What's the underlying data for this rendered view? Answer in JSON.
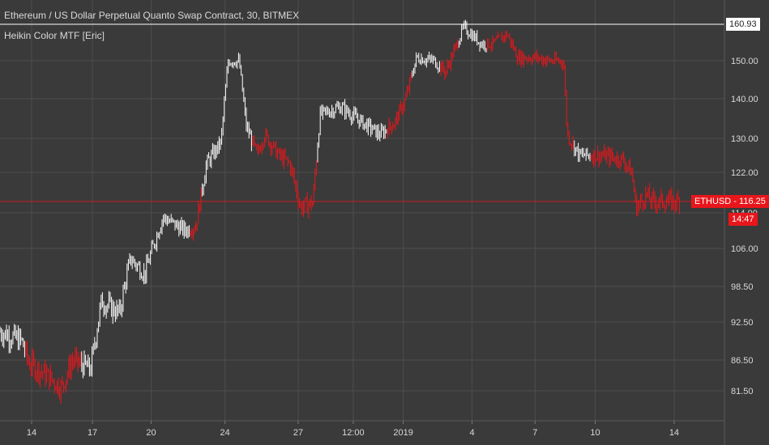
{
  "header": {
    "title": "Ethereum / US Dollar Perpetual Quanto Swap Contract, 30, BITMEX",
    "indicator": "Heikin Color MTF [Eric]"
  },
  "price_tags": {
    "high_value": "160.93",
    "symbol": "ETHUSD",
    "current_value": "116.25",
    "countdown": "14:47"
  },
  "colors": {
    "background": "#3a3a3a",
    "grid": "#4d4d4d",
    "up_candle": "#ffffff",
    "down_candle": "#e8161b",
    "axis_text": "#d9d9d9"
  },
  "chart_data": {
    "type": "candlestick",
    "y_ticks": [
      "81.50",
      "86.50",
      "92.50",
      "98.50",
      "106.00",
      "114.00",
      "122.00",
      "130.00",
      "140.00",
      "150.00"
    ],
    "x_ticks": [
      "14",
      "17",
      "20",
      "24",
      "27",
      "12:00",
      "2019",
      "4",
      "7",
      "10",
      "14"
    ],
    "x_tick_positions": [
      0.038,
      0.122,
      0.203,
      0.305,
      0.406,
      0.482,
      0.551,
      0.646,
      0.733,
      0.816,
      0.925
    ],
    "grid": true,
    "series": [
      {
        "name": "ETHUSD",
        "approx_close_path": [
          {
            "t": 0.0,
            "v": 91.0,
            "dir": "up"
          },
          {
            "t": 0.03,
            "v": 89.5,
            "dir": "up"
          },
          {
            "t": 0.04,
            "v": 86.0,
            "dir": "down"
          },
          {
            "t": 0.065,
            "v": 84.0,
            "dir": "down"
          },
          {
            "t": 0.085,
            "v": 82.0,
            "dir": "down"
          },
          {
            "t": 0.1,
            "v": 86.5,
            "dir": "down"
          },
          {
            "t": 0.125,
            "v": 85.0,
            "dir": "up"
          },
          {
            "t": 0.14,
            "v": 96.0,
            "dir": "up"
          },
          {
            "t": 0.165,
            "v": 94.0,
            "dir": "up"
          },
          {
            "t": 0.18,
            "v": 104.0,
            "dir": "up"
          },
          {
            "t": 0.2,
            "v": 101.0,
            "dir": "up"
          },
          {
            "t": 0.225,
            "v": 113.0,
            "dir": "up"
          },
          {
            "t": 0.255,
            "v": 110.0,
            "dir": "up"
          },
          {
            "t": 0.27,
            "v": 111.0,
            "dir": "down"
          },
          {
            "t": 0.285,
            "v": 124.0,
            "dir": "up"
          },
          {
            "t": 0.305,
            "v": 129.0,
            "dir": "up"
          },
          {
            "t": 0.315,
            "v": 150.0,
            "dir": "up"
          },
          {
            "t": 0.33,
            "v": 150.0,
            "dir": "up"
          },
          {
            "t": 0.34,
            "v": 133.0,
            "dir": "up"
          },
          {
            "t": 0.355,
            "v": 126.0,
            "dir": "down"
          },
          {
            "t": 0.365,
            "v": 131.0,
            "dir": "down"
          },
          {
            "t": 0.385,
            "v": 126.0,
            "dir": "down"
          },
          {
            "t": 0.4,
            "v": 124.0,
            "dir": "down"
          },
          {
            "t": 0.415,
            "v": 115.0,
            "dir": "down"
          },
          {
            "t": 0.432,
            "v": 116.0,
            "dir": "down"
          },
          {
            "t": 0.442,
            "v": 136.0,
            "dir": "up"
          },
          {
            "t": 0.47,
            "v": 138.0,
            "dir": "up"
          },
          {
            "t": 0.5,
            "v": 134.0,
            "dir": "up"
          },
          {
            "t": 0.525,
            "v": 131.0,
            "dir": "up"
          },
          {
            "t": 0.545,
            "v": 134.0,
            "dir": "down"
          },
          {
            "t": 0.56,
            "v": 140.0,
            "dir": "down"
          },
          {
            "t": 0.575,
            "v": 151.0,
            "dir": "up"
          },
          {
            "t": 0.6,
            "v": 150.0,
            "dir": "up"
          },
          {
            "t": 0.615,
            "v": 147.0,
            "dir": "down"
          },
          {
            "t": 0.625,
            "v": 152.0,
            "dir": "down"
          },
          {
            "t": 0.64,
            "v": 160.0,
            "dir": "up"
          },
          {
            "t": 0.665,
            "v": 155.0,
            "dir": "up"
          },
          {
            "t": 0.68,
            "v": 155.0,
            "dir": "down"
          },
          {
            "t": 0.7,
            "v": 158.0,
            "dir": "down"
          },
          {
            "t": 0.715,
            "v": 151.0,
            "dir": "down"
          },
          {
            "t": 0.74,
            "v": 151.0,
            "dir": "down"
          },
          {
            "t": 0.76,
            "v": 150.0,
            "dir": "down"
          },
          {
            "t": 0.778,
            "v": 150.0,
            "dir": "down"
          },
          {
            "t": 0.783,
            "v": 131.0,
            "dir": "down"
          },
          {
            "t": 0.8,
            "v": 126.0,
            "dir": "up"
          },
          {
            "t": 0.83,
            "v": 126.0,
            "dir": "down"
          },
          {
            "t": 0.86,
            "v": 125.0,
            "dir": "down"
          },
          {
            "t": 0.872,
            "v": 122.0,
            "dir": "down"
          },
          {
            "t": 0.878,
            "v": 115.0,
            "dir": "down"
          },
          {
            "t": 0.892,
            "v": 117.5,
            "dir": "down"
          },
          {
            "t": 0.9,
            "v": 116.25,
            "dir": "down"
          }
        ]
      }
    ],
    "high_line": 160.93,
    "last_price": 116.25
  }
}
